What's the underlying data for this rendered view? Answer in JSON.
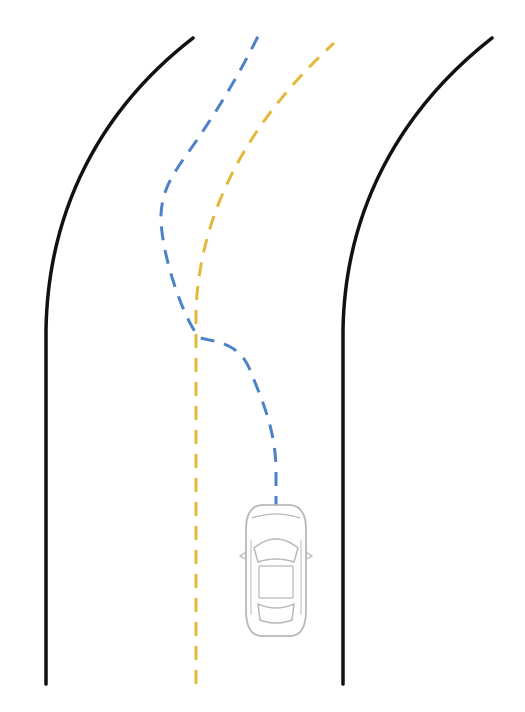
{
  "colors": {
    "background": "#ffffff",
    "road_edge": "#111111",
    "reference_path": "#E5B83A",
    "planned_path": "#4B82C8",
    "car_outline": "#B8B8B8"
  },
  "icons": {
    "vehicle": "car-top-view-icon"
  }
}
